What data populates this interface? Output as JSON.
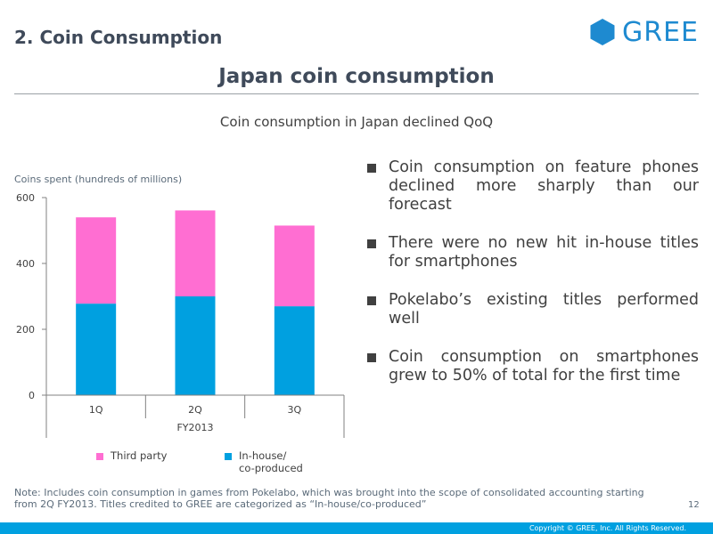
{
  "header": {
    "section_title": "2. Coin Consumption",
    "logo_text": "GREE",
    "slide_title": "Japan coin consumption",
    "subtitle": "Coin consumption in Japan declined QoQ"
  },
  "colors": {
    "third_party": "#ff6ed2",
    "in_house": "#00a0e0",
    "brand_blue": "#1e8ad0"
  },
  "chart_data": {
    "type": "bar",
    "stacked": true,
    "ylabel": "Coins spent (hundreds of millions)",
    "xlabel": "FY2013",
    "categories": [
      "1Q",
      "2Q",
      "3Q"
    ],
    "ylim": [
      0,
      600
    ],
    "yticks": [
      0,
      200,
      400,
      600
    ],
    "series": [
      {
        "name": "In-house/ co-produced",
        "values": [
          278,
          300,
          270
        ]
      },
      {
        "name": "Third party",
        "values": [
          262,
          261,
          245
        ]
      }
    ],
    "legend": [
      "Third party",
      "In-house/ co-produced"
    ],
    "legend_position": "bottom"
  },
  "bullets": [
    "Coin consumption on feature phones declined more sharply than our forecast",
    "There were no new hit in-house titles for smartphones",
    "Pokelabo’s existing titles performed well",
    "Coin consumption on smartphones grew to 50% of total for the first time"
  ],
  "legend": {
    "third_party": "Third party",
    "in_house_line1": "In-house/",
    "in_house_line2": "co-produced"
  },
  "note": "Note: Includes coin consumption in games from Pokelabo, which was brought into the scope of consolidated accounting starting from 2Q FY2013. Titles credited to GREE are categorized as “In-house/co-produced”",
  "page_number": "12",
  "copyright": "Copyright © GREE, Inc. All Rights Reserved."
}
